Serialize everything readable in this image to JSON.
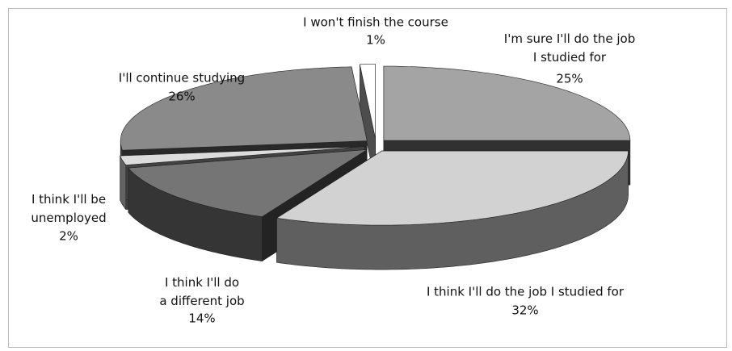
{
  "chart_data": {
    "type": "pie",
    "categories": [
      "I'm sure I'll do the job\nI studied for",
      "I think I'll do the job I studied for",
      "I think I'll do\na different job",
      "I think I'll be\nunemployed",
      "I'll continue studying",
      "I won't finish the course"
    ],
    "values": [
      25,
      32,
      14,
      2,
      26,
      1
    ],
    "value_labels": [
      "25%",
      "32%",
      "14%",
      "2%",
      "26%",
      "1%"
    ],
    "colors": [
      "#a4a4a4",
      "#d2d2d2",
      "#757575",
      "#dcdcdc",
      "#8a8a8a",
      "#ffffff"
    ]
  }
}
